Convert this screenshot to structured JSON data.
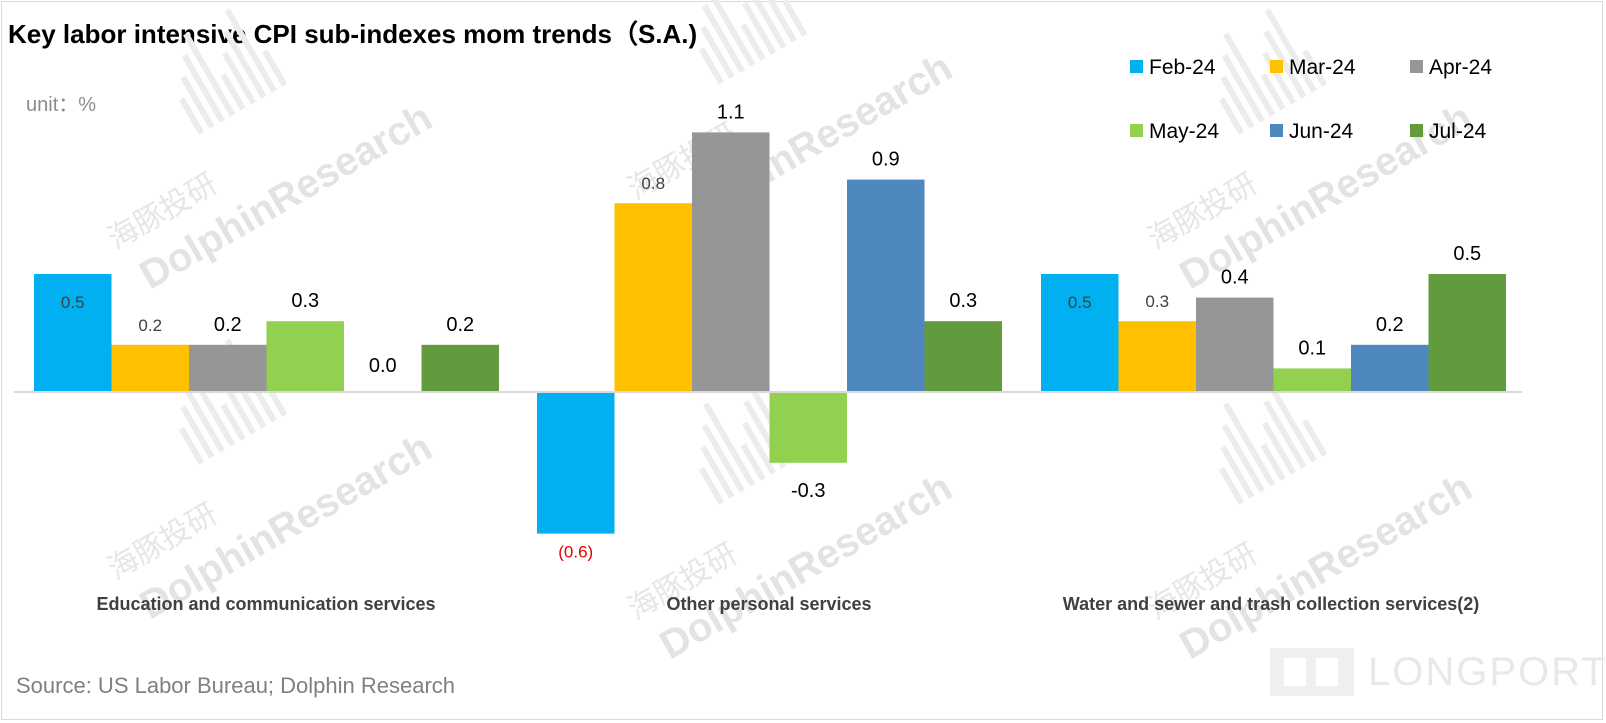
{
  "chart_data": {
    "type": "bar",
    "title": "Key labor intensive CPI sub-indexes mom trends（S.A.)",
    "unit_label": "unit：%",
    "source": "Source: US Labor Bureau; Dolphin Research",
    "categories": [
      "Education and communication services",
      "Other personal services",
      "Water and sewer and trash collection services(2)"
    ],
    "series": [
      {
        "name": "Feb-24",
        "color": "#00b0f0",
        "values": [
          0.5,
          -0.6,
          0.5
        ]
      },
      {
        "name": "Mar-24",
        "color": "#ffc000",
        "values": [
          0.2,
          0.8,
          0.3
        ]
      },
      {
        "name": "Apr-24",
        "color": "#969696",
        "values": [
          0.2,
          1.1,
          0.4
        ]
      },
      {
        "name": "May-24",
        "color": "#92d050",
        "values": [
          0.3,
          -0.3,
          0.1
        ]
      },
      {
        "name": "Jun-24",
        "color": "#4f88bf",
        "values": [
          0.0,
          0.9,
          0.2
        ]
      },
      {
        "name": "Jul-24",
        "color": "#629b3e",
        "values": [
          0.2,
          0.3,
          0.5
        ]
      }
    ],
    "data_labels": [
      [
        "0.5",
        "0.2",
        "0.2",
        "0.3",
        "0.0",
        "0.2"
      ],
      [
        "(0.6)",
        "0.8",
        "1.1",
        "-0.3",
        "0.9",
        "0.3"
      ],
      [
        "0.5",
        "0.3",
        "0.4",
        "0.1",
        "0.2",
        "0.5"
      ]
    ],
    "negative_label_color": "#e00000",
    "ylim": [
      -0.6,
      1.1
    ],
    "legend_position": "top-right",
    "grid": false
  },
  "watermark": {
    "text": "DolphinResearch",
    "text_cn": "海豚投研"
  },
  "logo": {
    "text": "LONGPORT"
  }
}
